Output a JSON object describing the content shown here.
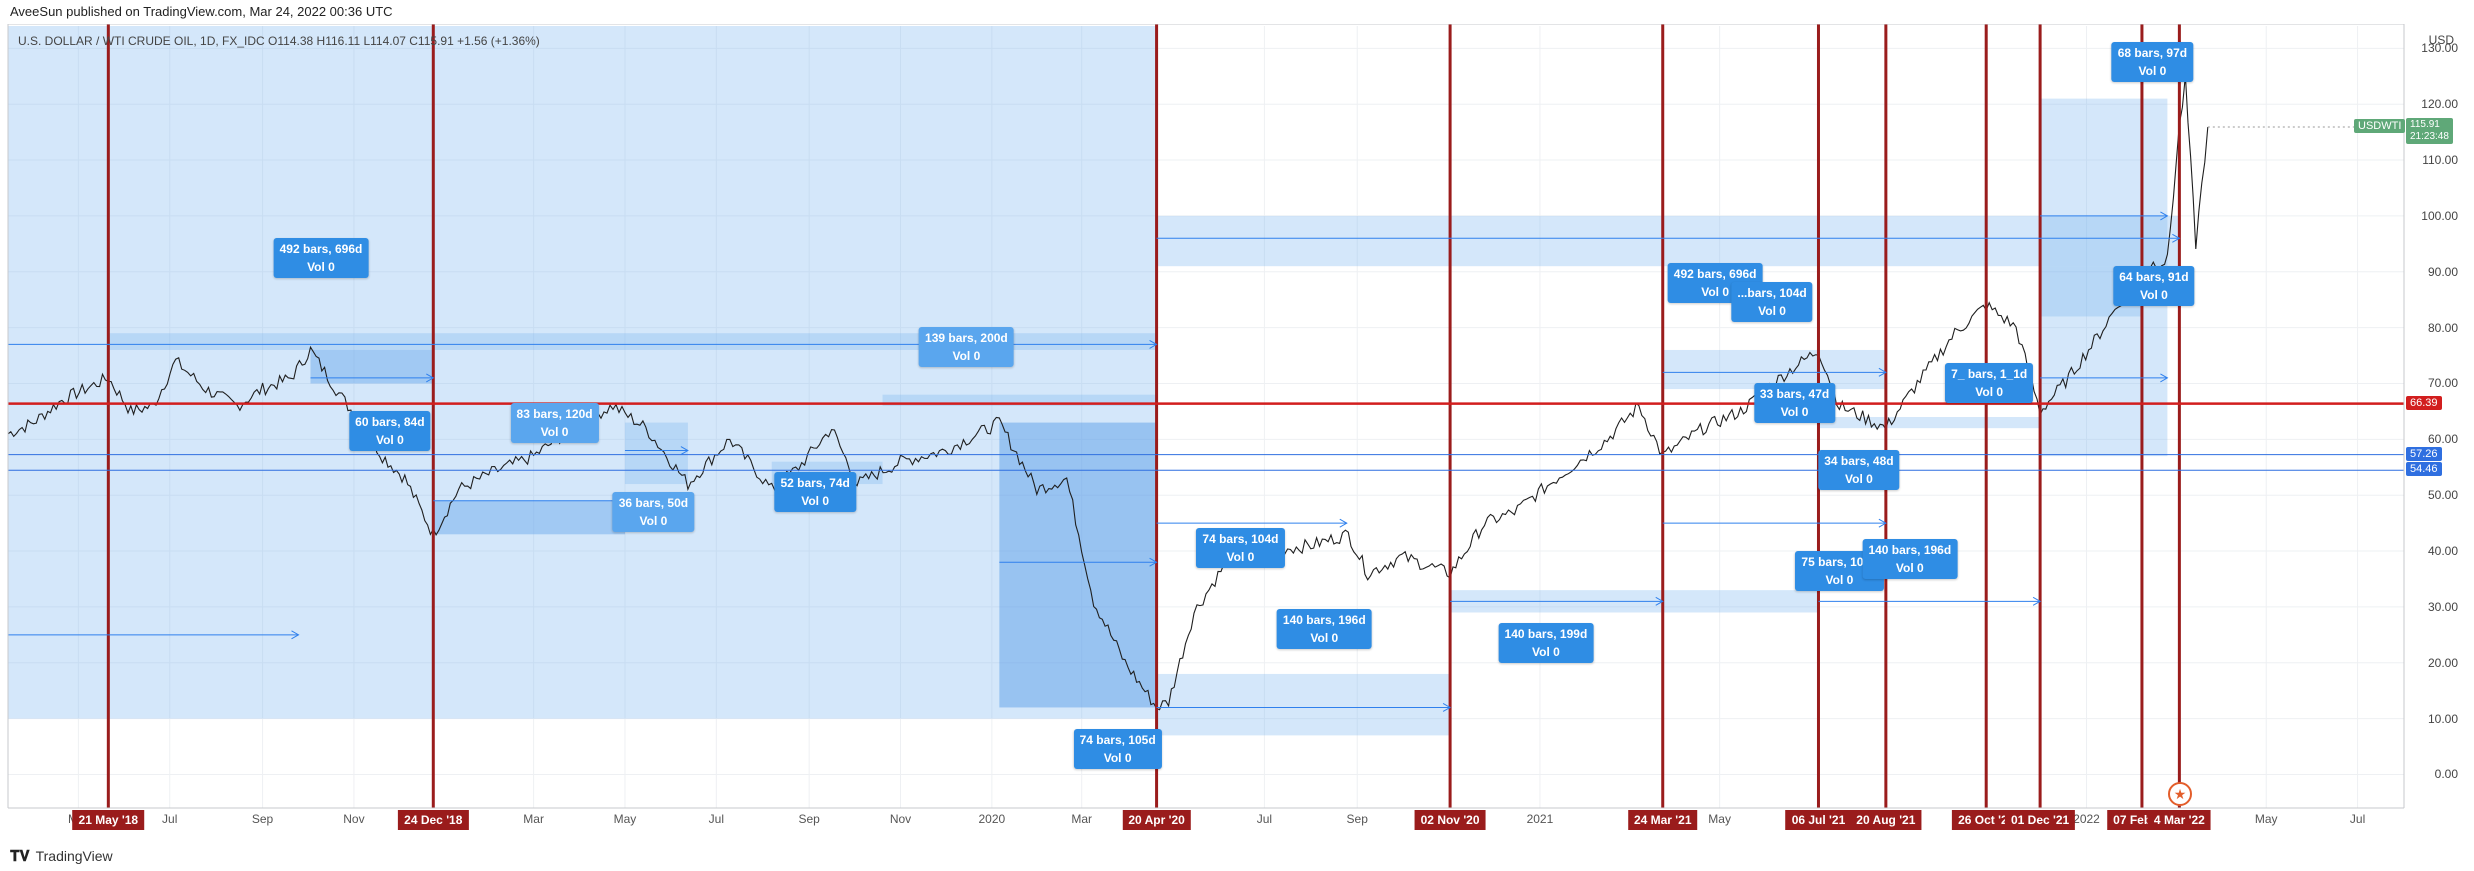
{
  "header": {
    "published": "AveeSun published on TradingView.com, Mar 24, 2022 00:36 UTC"
  },
  "symbol_info": "U.S. DOLLAR / WTI CRUDE OIL, 1D, FX_IDC  O114.38  H116.11  L114.07  C115.91  +1.56 (+1.36%)",
  "footer": {
    "brand": "TradingView"
  },
  "colors": {
    "range_fill": "#cfe3f8",
    "range_fill_dark": "#a9cdf3",
    "vline": "#9a1c1c",
    "hline": "#d21e1e",
    "arrow": "#2f80ed",
    "price_line": "#1f1f1f",
    "box": "#2f8de4",
    "last_price": "#5fa878"
  },
  "chart_data": {
    "type": "line",
    "symbol": "USDWTI",
    "currency": "USD",
    "ylim": [
      -6,
      134
    ],
    "xlim": [
      "2018-03-15",
      "2022-08-01"
    ],
    "y_ticks": [
      0,
      10,
      20,
      30,
      40,
      50,
      60,
      70,
      80,
      90,
      100,
      110,
      120,
      130
    ],
    "y_tick_labels": [
      "0.00",
      "10.00",
      "20.00",
      "30.00",
      "40.00",
      "50.00",
      "60.00",
      "70.00",
      "80.00",
      "90.00",
      "100.00",
      "110.00",
      "120.00",
      "130.00"
    ],
    "x_ticks": [
      {
        "d": "2018-05-01",
        "label": "Mar"
      },
      {
        "d": "2018-07-01",
        "label": "Jul"
      },
      {
        "d": "2018-09-01",
        "label": "Sep"
      },
      {
        "d": "2018-11-01",
        "label": "Nov"
      },
      {
        "d": "2019-03-01",
        "label": "Mar"
      },
      {
        "d": "2019-05-01",
        "label": "May"
      },
      {
        "d": "2019-07-01",
        "label": "Jul"
      },
      {
        "d": "2019-09-01",
        "label": "Sep"
      },
      {
        "d": "2019-11-01",
        "label": "Nov"
      },
      {
        "d": "2020-01-01",
        "label": "2020"
      },
      {
        "d": "2020-03-01",
        "label": "Mar"
      },
      {
        "d": "2020-07-01",
        "label": "Jul"
      },
      {
        "d": "2020-09-01",
        "label": "Sep"
      },
      {
        "d": "2021-01-01",
        "label": "2021"
      },
      {
        "d": "2021-05-01",
        "label": "May"
      },
      {
        "d": "2022-01-01",
        "label": "2022"
      },
      {
        "d": "2022-05-01",
        "label": "May"
      },
      {
        "d": "2022-07-01",
        "label": "Jul"
      }
    ],
    "price_series": [
      [
        "2018-03-15",
        61
      ],
      [
        "2018-04-01",
        63
      ],
      [
        "2018-04-20",
        67
      ],
      [
        "2018-05-21",
        71
      ],
      [
        "2018-06-05",
        65
      ],
      [
        "2018-06-20",
        66
      ],
      [
        "2018-07-05",
        74
      ],
      [
        "2018-07-25",
        69
      ],
      [
        "2018-08-15",
        66
      ],
      [
        "2018-09-01",
        69
      ],
      [
        "2018-09-20",
        71
      ],
      [
        "2018-10-03",
        76
      ],
      [
        "2018-10-20",
        69
      ],
      [
        "2018-11-05",
        63
      ],
      [
        "2018-11-20",
        57
      ],
      [
        "2018-12-05",
        53
      ],
      [
        "2018-12-24",
        43
      ],
      [
        "2019-01-10",
        51
      ],
      [
        "2019-02-01",
        54
      ],
      [
        "2019-03-01",
        57
      ],
      [
        "2019-04-01",
        63
      ],
      [
        "2019-04-23",
        66
      ],
      [
        "2019-05-15",
        62
      ],
      [
        "2019-06-12",
        52
      ],
      [
        "2019-07-10",
        60
      ],
      [
        "2019-08-07",
        51
      ],
      [
        "2019-08-25",
        55
      ],
      [
        "2019-09-16",
        62
      ],
      [
        "2019-10-03",
        52
      ],
      [
        "2019-11-01",
        56
      ],
      [
        "2019-12-01",
        58
      ],
      [
        "2020-01-06",
        63
      ],
      [
        "2020-01-31",
        51
      ],
      [
        "2020-02-20",
        53
      ],
      [
        "2020-03-09",
        31
      ],
      [
        "2020-03-30",
        20
      ],
      [
        "2020-04-20",
        12
      ],
      [
        "2020-04-28",
        13
      ],
      [
        "2020-05-15",
        29
      ],
      [
        "2020-06-08",
        39
      ],
      [
        "2020-07-01",
        40
      ],
      [
        "2020-08-01",
        41
      ],
      [
        "2020-08-26",
        43
      ],
      [
        "2020-09-08",
        36
      ],
      [
        "2020-10-01",
        39
      ],
      [
        "2020-11-02",
        36
      ],
      [
        "2020-11-25",
        45
      ],
      [
        "2020-12-15",
        47
      ],
      [
        "2021-01-12",
        53
      ],
      [
        "2021-02-15",
        60
      ],
      [
        "2021-03-08",
        66
      ],
      [
        "2021-03-24",
        57
      ],
      [
        "2021-04-20",
        62
      ],
      [
        "2021-05-15",
        65
      ],
      [
        "2021-06-15",
        72
      ],
      [
        "2021-07-06",
        76
      ],
      [
        "2021-07-20",
        66
      ],
      [
        "2021-08-20",
        62
      ],
      [
        "2021-09-10",
        70
      ],
      [
        "2021-10-05",
        79
      ],
      [
        "2021-10-26",
        84
      ],
      [
        "2021-11-15",
        80
      ],
      [
        "2021-12-01",
        65
      ],
      [
        "2021-12-20",
        71
      ],
      [
        "2022-01-10",
        79
      ],
      [
        "2022-02-07",
        91
      ],
      [
        "2022-02-24",
        92
      ],
      [
        "2022-03-04",
        116
      ],
      [
        "2022-03-08",
        124
      ],
      [
        "2022-03-15",
        95
      ],
      [
        "2022-03-23",
        115.91
      ]
    ],
    "last_price": 115.91,
    "last_price_label": "115.91",
    "last_symbol_label": "USDWTI",
    "last_countdown": "21:23:48",
    "horizontal_lines": [
      {
        "y": 66.39,
        "label": "66.39",
        "color": "#d21e1e"
      },
      {
        "y": 57.26,
        "label": "57.26",
        "color": "#2f6fe0"
      },
      {
        "y": 54.46,
        "label": "54.46",
        "color": "#2f6fe0"
      }
    ],
    "vertical_markers": [
      {
        "d": "2018-05-21",
        "label": "21 May '18"
      },
      {
        "d": "2018-12-24",
        "label": "24 Dec '18"
      },
      {
        "d": "2020-04-20",
        "label": "20 Apr '20"
      },
      {
        "d": "2020-11-02",
        "label": "02 Nov '20"
      },
      {
        "d": "2021-03-24",
        "label": "24 Mar '21"
      },
      {
        "d": "2021-07-06",
        "label": "06 Jul '21"
      },
      {
        "d": "2021-08-20",
        "label": "20 Aug '21"
      },
      {
        "d": "2021-10-26",
        "label": "26 Oct '21"
      },
      {
        "d": "2021-12-01",
        "label": "01 Dec '21"
      },
      {
        "d": "2022-02-07",
        "label": "07 Feb '22"
      },
      {
        "d": "2022-03-04",
        "label": "4 Mar '22"
      }
    ],
    "ranges": [
      {
        "d1": "2018-03-15",
        "d2": "2020-04-20",
        "y1": 10,
        "y2": 134,
        "shade": "light"
      },
      {
        "d1": "2020-04-20",
        "d2": "2022-03-04",
        "y1": 91,
        "y2": 100,
        "shade": "light"
      },
      {
        "d1": "2018-05-21",
        "d2": "2020-04-20",
        "y1": 76,
        "y2": 79,
        "shade": "light"
      },
      {
        "d1": "2018-10-03",
        "d2": "2018-12-24",
        "y1": 70,
        "y2": 76,
        "shade": "mid"
      },
      {
        "d1": "2018-12-24",
        "d2": "2019-05-01",
        "y1": 43,
        "y2": 49,
        "shade": "mid"
      },
      {
        "d1": "2019-05-01",
        "d2": "2019-06-12",
        "y1": 52,
        "y2": 63,
        "shade": "light"
      },
      {
        "d1": "2019-08-07",
        "d2": "2019-10-20",
        "y1": 52,
        "y2": 56,
        "shade": "light"
      },
      {
        "d1": "2019-10-20",
        "d2": "2020-04-20",
        "y1": 66,
        "y2": 68,
        "shade": "light"
      },
      {
        "d1": "2020-01-06",
        "d2": "2020-04-20",
        "y1": 12,
        "y2": 63,
        "shade": "dark"
      },
      {
        "d1": "2020-04-20",
        "d2": "2020-11-02",
        "y1": 7,
        "y2": 18,
        "shade": "light"
      },
      {
        "d1": "2020-11-02",
        "d2": "2021-07-06",
        "y1": 29,
        "y2": 33,
        "shade": "light"
      },
      {
        "d1": "2021-03-24",
        "d2": "2021-08-20",
        "y1": 69,
        "y2": 76,
        "shade": "light"
      },
      {
        "d1": "2021-07-06",
        "d2": "2021-12-01",
        "y1": 62,
        "y2": 64,
        "shade": "light"
      },
      {
        "d1": "2021-12-01",
        "d2": "2022-02-24",
        "y1": 57,
        "y2": 121,
        "shade": "light"
      },
      {
        "d1": "2021-12-01",
        "d2": "2022-02-07",
        "y1": 82,
        "y2": 91,
        "shade": "light"
      }
    ],
    "arrows": [
      {
        "d1": "2018-03-15",
        "d2": "2020-04-20",
        "y": 77
      },
      {
        "d1": "2018-10-03",
        "d2": "2018-12-24",
        "y": 71
      },
      {
        "d1": "2018-03-15",
        "d2": "2018-09-25",
        "y": 25
      },
      {
        "d1": "2018-12-24",
        "d2": "2019-05-01",
        "y": 49
      },
      {
        "d1": "2019-05-01",
        "d2": "2019-06-12",
        "y": 58
      },
      {
        "d1": "2020-04-20",
        "d2": "2020-08-25",
        "y": 45
      },
      {
        "d1": "2020-01-06",
        "d2": "2020-04-20",
        "y": 38
      },
      {
        "d1": "2020-04-20",
        "d2": "2020-11-02",
        "y": 12
      },
      {
        "d1": "2020-11-02",
        "d2": "2021-03-24",
        "y": 31
      },
      {
        "d1": "2020-04-20",
        "d2": "2022-03-04",
        "y": 96
      },
      {
        "d1": "2021-03-24",
        "d2": "2021-08-20",
        "y": 72
      },
      {
        "d1": "2021-07-06",
        "d2": "2021-12-01",
        "y": 31
      },
      {
        "d1": "2021-03-24",
        "d2": "2021-08-20",
        "y": 45
      },
      {
        "d1": "2021-12-01",
        "d2": "2022-02-24",
        "y": 71
      },
      {
        "d1": "2021-12-01",
        "d2": "2022-02-24",
        "y": 100
      }
    ],
    "annotations": [
      {
        "d": "2018-10-10",
        "y": 92.5,
        "line1": "492 bars, 696d",
        "line2": "Vol 0",
        "shade": "dark"
      },
      {
        "d": "2018-11-25",
        "y": 61.5,
        "line1": "60 bars, 84d",
        "line2": "Vol 0",
        "shade": "dark"
      },
      {
        "d": "2019-03-15",
        "y": 63,
        "line1": "83 bars, 120d",
        "line2": "Vol 0",
        "shade": "light"
      },
      {
        "d": "2019-05-20",
        "y": 47,
        "line1": "36 bars, 50d",
        "line2": "Vol 0",
        "shade": "light"
      },
      {
        "d": "2019-09-05",
        "y": 50.5,
        "line1": "52 bars, 74d",
        "line2": "Vol 0",
        "shade": "dark"
      },
      {
        "d": "2019-12-15",
        "y": 76.5,
        "line1": "139 bars, 200d",
        "line2": "Vol 0",
        "shade": "light"
      },
      {
        "d": "2020-06-15",
        "y": 40.5,
        "line1": "74 bars, 104d",
        "line2": "Vol 0",
        "shade": "dark"
      },
      {
        "d": "2020-08-10",
        "y": 26,
        "line1": "140 bars, 196d",
        "line2": "Vol 0",
        "shade": "dark"
      },
      {
        "d": "2020-03-25",
        "y": 4.5,
        "line1": "74 bars, 105d",
        "line2": "Vol 0",
        "shade": "dark"
      },
      {
        "d": "2021-01-05",
        "y": 23.5,
        "line1": "140 bars, 199d",
        "line2": "Vol 0",
        "shade": "dark"
      },
      {
        "d": "2021-04-28",
        "y": 88,
        "line1": "492 bars, 696d",
        "line2": "Vol 0",
        "shade": "dark"
      },
      {
        "d": "2021-06-05",
        "y": 84.5,
        "line1": "...bars, 104d",
        "line2": "Vol 0",
        "shade": "dark"
      },
      {
        "d": "2021-06-20",
        "y": 66.5,
        "line1": "33 bars, 47d",
        "line2": "Vol 0",
        "shade": "dark"
      },
      {
        "d": "2021-08-02",
        "y": 54.5,
        "line1": "34 bars, 48d",
        "line2": "Vol 0",
        "shade": "dark"
      },
      {
        "d": "2021-07-20",
        "y": 36.5,
        "line1": "75 bars, 105d",
        "line2": "Vol 0",
        "shade": "dark"
      },
      {
        "d": "2021-09-05",
        "y": 38.5,
        "line1": "140 bars, 196d",
        "line2": "Vol 0",
        "shade": "dark"
      },
      {
        "d": "2021-10-28",
        "y": 70,
        "line1": "7_ bars, 1_1d",
        "line2": "Vol 0",
        "shade": "dark"
      },
      {
        "d": "2022-02-15",
        "y": 87.5,
        "line1": "64 bars, 91d",
        "line2": "Vol 0",
        "shade": "dark"
      },
      {
        "d": "2022-02-14",
        "y": 127.5,
        "line1": "68 bars, 97d",
        "line2": "Vol 0",
        "shade": "dark"
      }
    ]
  }
}
